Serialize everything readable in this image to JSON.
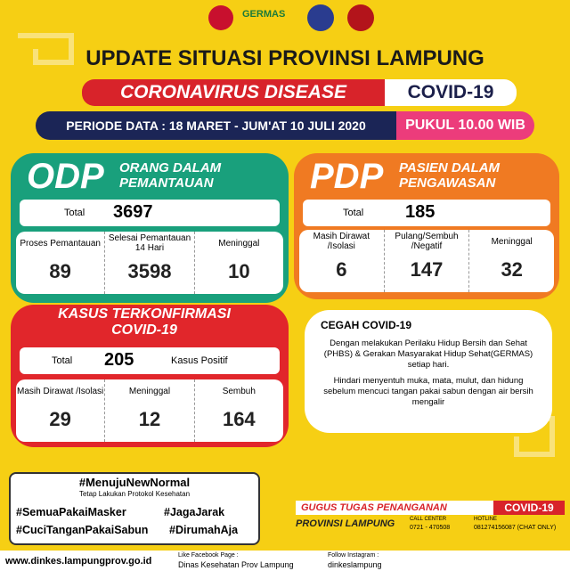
{
  "header": {
    "logo_text": "GERMAS",
    "title": "UPDATE SITUASI PROVINSI LAMPUNG",
    "subtitle": "CORONAVIRUS DISEASE",
    "badge": "COVID-19",
    "period": "PERIODE DATA : 18 MARET - JUM'AT 10 JULI 2020",
    "time": "PUKUL 10.00 WIB"
  },
  "odp": {
    "code": "ODP",
    "name": "ORANG DALAM PEMANTAUAN",
    "total_label": "Total",
    "total": 3697,
    "columns": [
      {
        "label": "Proses Pemantauan",
        "value": 89
      },
      {
        "label": "Selesai Pemantauan 14 Hari",
        "value": 3598
      },
      {
        "label": "Meninggal",
        "value": 10
      }
    ]
  },
  "pdp": {
    "code": "PDP",
    "name": "PASIEN DALAM PENGAWASAN",
    "total_label": "Total",
    "total": 185,
    "columns": [
      {
        "label": "Masih Dirawat /Isolasi",
        "value": 6
      },
      {
        "label": "Pulang/Sembuh /Negatif",
        "value": 147
      },
      {
        "label": "Meninggal",
        "value": 32
      }
    ]
  },
  "confirmed": {
    "title": "KASUS TERKONFIRMASI COVID-19",
    "total_label": "Total",
    "total": 205,
    "note": "Kasus Positif",
    "columns": [
      {
        "label": "Masih Dirawat /Isolasi",
        "value": 29
      },
      {
        "label": "Meninggal",
        "value": 12
      },
      {
        "label": "Sembuh",
        "value": 164
      }
    ]
  },
  "prevention": {
    "title": "CEGAH COVID-19",
    "paragraphs": [
      "Dengan melakukan Perilaku Hidup Bersih dan Sehat (PHBS) & Gerakan Masyarakat Hidup Sehat(GERMAS) setiap hari.",
      "Hindari menyentuh muka, mata, mulut, dan hidung sebelum mencuci tangan pakai sabun dengan air bersih mengalir"
    ]
  },
  "hashtags": {
    "main": "#MenujuNewNormal",
    "sub": "Tetap Lakukan Protokol Kesehatan",
    "tags": [
      "#SemuaPakaiMasker",
      "#JagaJarak",
      "#CuciTanganPakaiSabun",
      "#DirumahAja"
    ]
  },
  "task_force": {
    "title": "GUGUS TUGAS PENANGANAN",
    "badge": "COVID-19",
    "region": "PROVINSI LAMPUNG",
    "call_label": "CALL CENTER",
    "call": "0721 - 470508",
    "hotline_label": "HOTLINE",
    "hotline": "081274156087 (CHAT ONLY)"
  },
  "footer": {
    "website": "www.dinkes.lampungprov.go.id",
    "facebook_label": "Like Facebook Page :",
    "facebook": "Dinas Kesehatan Prov Lampung",
    "instagram_label": "Follow Instagram :",
    "instagram": "dinkeslampung"
  }
}
